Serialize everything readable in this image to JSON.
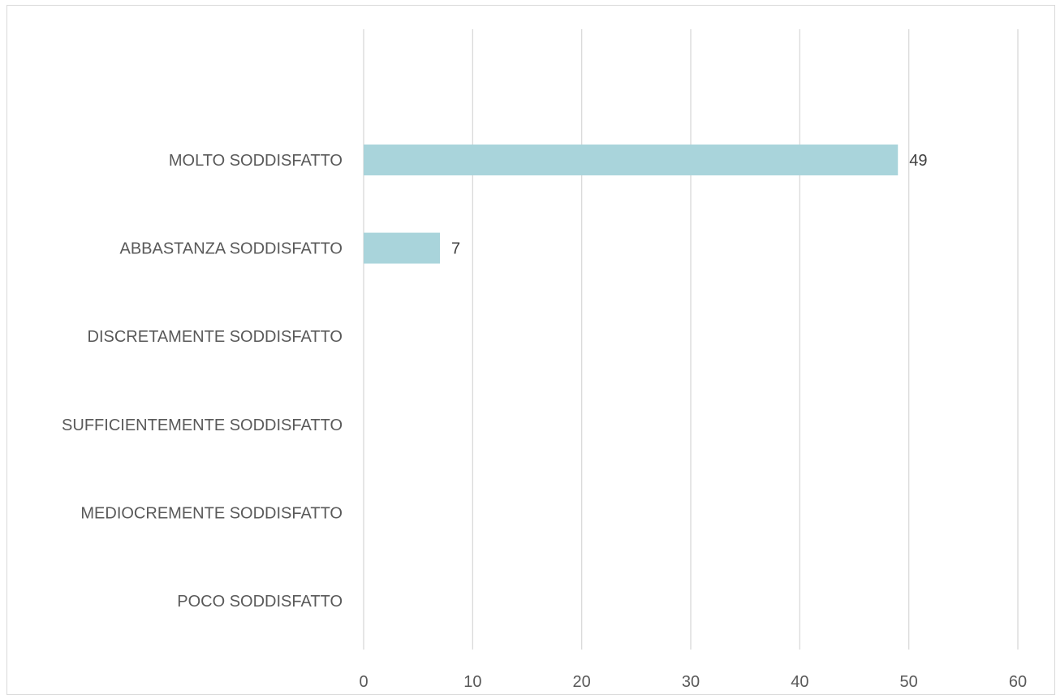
{
  "chart_data": {
    "type": "bar",
    "orientation": "horizontal",
    "categories": [
      "MOLTO SODDISFATTO",
      "ABBASTANZA SODDISFATTO",
      "DISCRETAMENTE SODDISFATTO",
      "SUFFICIENTEMENTE SODDISFATTO",
      "MEDIOCREMENTE SODDISFATTO",
      "POCO SODDISFATTO"
    ],
    "values": [
      49,
      7,
      0,
      0,
      0,
      0
    ],
    "data_labels": [
      "49",
      "7",
      "",
      "",
      "",
      ""
    ],
    "xlim": [
      0,
      60
    ],
    "xticks": [
      0,
      10,
      20,
      30,
      40,
      50,
      60
    ],
    "xtick_labels": [
      "0",
      "10",
      "20",
      "30",
      "40",
      "50",
      "60"
    ],
    "grid": true,
    "legend": "none",
    "bar_color": "#a9d4db",
    "grid_color": "#d9d9d9",
    "label_color": "#595959"
  }
}
